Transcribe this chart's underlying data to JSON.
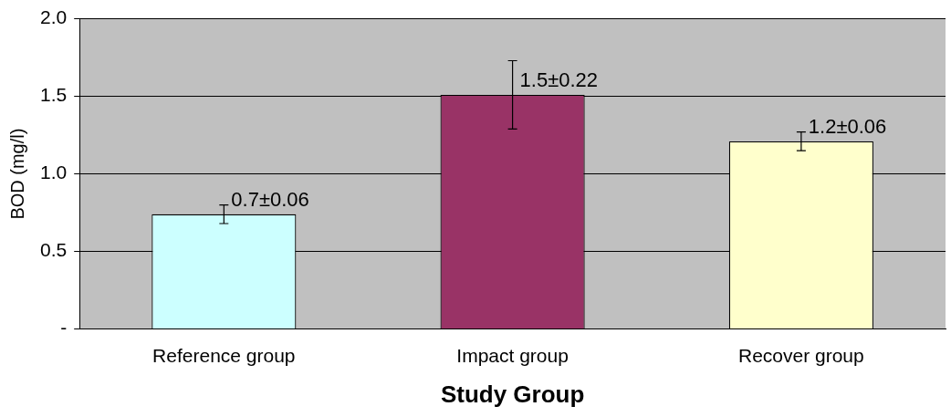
{
  "chart_data": {
    "type": "bar",
    "xlabel": "Study Group",
    "ylabel": "BOD (mg/l)",
    "categories": [
      "Reference group",
      "Impact group",
      "Recover group"
    ],
    "values": [
      0.74,
      1.51,
      1.21
    ],
    "colors": [
      "#ccffff",
      "#993366",
      "#ffffcc"
    ],
    "errors": [
      0.06,
      0.22,
      0.06
    ],
    "value_labels": [
      "0.7±0.06",
      "1.5±0.22",
      "1.2±0.06"
    ],
    "ylim": [
      0,
      2
    ],
    "yticks": [
      {
        "value": 0,
        "label": "-"
      },
      {
        "value": 0.5,
        "label": "0.5"
      },
      {
        "value": 1,
        "label": "1.0"
      },
      {
        "value": 1.5,
        "label": "1.5"
      },
      {
        "value": 2,
        "label": "2.0"
      }
    ],
    "grid": "y",
    "legend": false
  }
}
